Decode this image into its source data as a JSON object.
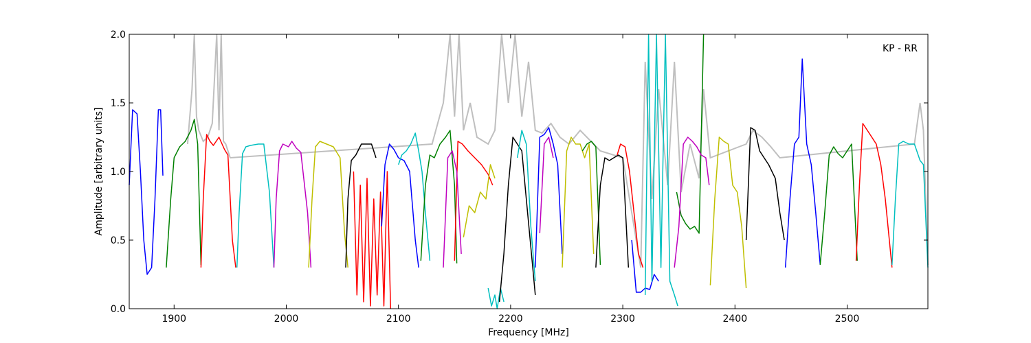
{
  "chart_data": {
    "type": "line",
    "title": "",
    "xlabel": "Frequency [MHz]",
    "ylabel": "Amplitude [arbitrary units]",
    "xlim": [
      1860,
      2572
    ],
    "ylim": [
      0.0,
      2.0
    ],
    "x_ticks": [
      1900,
      2000,
      2100,
      2200,
      2300,
      2400,
      2500
    ],
    "x_tick_labels": [
      "1900",
      "2000",
      "2100",
      "2200",
      "2300",
      "2400",
      "2500"
    ],
    "y_ticks": [
      0.0,
      0.5,
      1.0,
      1.5,
      2.0
    ],
    "y_tick_labels": [
      "0.0",
      "0.5",
      "1.0",
      "1.5",
      "2.0"
    ],
    "grid": false,
    "annotation": "KP - RR",
    "background_color": "#bfbfbf",
    "series": [
      {
        "color": "#0000ff",
        "x": [
          1860,
          1863,
          1867,
          1870,
          1873,
          1876,
          1880,
          1883,
          1886,
          1888,
          1890
        ],
        "y": [
          0.9,
          1.45,
          1.42,
          1.0,
          0.5,
          0.25,
          0.3,
          0.8,
          1.45,
          1.45,
          0.97
        ]
      },
      {
        "color": "#008000",
        "x": [
          1893,
          1897,
          1900,
          1905,
          1910,
          1915,
          1918,
          1921,
          1924
        ],
        "y": [
          0.3,
          0.8,
          1.1,
          1.18,
          1.22,
          1.3,
          1.38,
          1.2,
          0.32
        ]
      },
      {
        "color": "#ff0000",
        "x": [
          1924,
          1926,
          1929,
          1932,
          1935,
          1940,
          1945,
          1948,
          1952,
          1955
        ],
        "y": [
          0.3,
          0.8,
          1.27,
          1.22,
          1.19,
          1.25,
          1.16,
          1.12,
          0.5,
          0.3
        ]
      },
      {
        "color": "#00bfbf",
        "x": [
          1956,
          1958,
          1961,
          1964,
          1968,
          1975,
          1980,
          1985,
          1989
        ],
        "y": [
          0.3,
          0.7,
          1.13,
          1.18,
          1.19,
          1.2,
          1.2,
          0.85,
          0.3
        ]
      },
      {
        "color": "#bf00bf",
        "x": [
          1989,
          1991,
          1994,
          1997,
          2002,
          2005,
          2009,
          2013,
          2019,
          2022
        ],
        "y": [
          0.3,
          0.8,
          1.15,
          1.2,
          1.18,
          1.22,
          1.17,
          1.14,
          0.7,
          0.3
        ]
      },
      {
        "color": "#bfbf00",
        "x": [
          2020,
          2023,
          2026,
          2030,
          2036,
          2042,
          2048,
          2052,
          2055
        ],
        "y": [
          0.3,
          0.8,
          1.18,
          1.22,
          1.2,
          1.18,
          1.1,
          0.55,
          0.3
        ]
      },
      {
        "color": "#000000",
        "x": [
          2053,
          2055,
          2058,
          2062,
          2067,
          2072,
          2076,
          2080
        ],
        "y": [
          0.3,
          0.8,
          1.08,
          1.12,
          1.2,
          1.2,
          1.2,
          1.1
        ]
      },
      {
        "color": "#ff0000",
        "x": [
          2060,
          2063,
          2066,
          2069,
          2072,
          2075,
          2078,
          2081,
          2084,
          2087,
          2090,
          2093
        ],
        "y": [
          1.0,
          0.1,
          0.9,
          0.05,
          0.95,
          0.02,
          0.8,
          0.1,
          0.85,
          0.02,
          1.0,
          0.0
        ]
      },
      {
        "color": "#0000ff",
        "x": [
          2085,
          2088,
          2092,
          2096,
          2100,
          2105,
          2110,
          2115,
          2118
        ],
        "y": [
          0.6,
          1.05,
          1.2,
          1.16,
          1.1,
          1.08,
          1.0,
          0.5,
          0.3
        ]
      },
      {
        "color": "#00bfbf",
        "x": [
          2100,
          2103,
          2107,
          2111,
          2115,
          2118,
          2121,
          2124,
          2128
        ],
        "y": [
          1.05,
          1.12,
          1.15,
          1.2,
          1.28,
          1.15,
          1.0,
          0.7,
          0.35
        ]
      },
      {
        "color": "#008000",
        "x": [
          2120,
          2124,
          2128,
          2132,
          2137,
          2142,
          2146,
          2150,
          2152
        ],
        "y": [
          0.35,
          0.9,
          1.12,
          1.1,
          1.2,
          1.25,
          1.3,
          0.9,
          0.33
        ]
      },
      {
        "color": "#ff0000",
        "x": [
          2150,
          2153,
          2157,
          2162,
          2168,
          2174,
          2180,
          2184
        ],
        "y": [
          0.35,
          1.22,
          1.2,
          1.15,
          1.1,
          1.05,
          0.98,
          0.9
        ]
      },
      {
        "color": "#bf00bf",
        "x": [
          2140,
          2144,
          2148,
          2152,
          2156
        ],
        "y": [
          0.3,
          1.1,
          1.15,
          1.0,
          0.4
        ]
      },
      {
        "color": "#bfbf00",
        "x": [
          2158,
          2163,
          2168,
          2173,
          2178,
          2182,
          2186
        ],
        "y": [
          0.52,
          0.75,
          0.7,
          0.85,
          0.8,
          1.05,
          0.95
        ]
      },
      {
        "color": "#00bfbf",
        "x": [
          2180,
          2183,
          2186,
          2188,
          2191,
          2194
        ],
        "y": [
          0.15,
          0.02,
          0.1,
          0.0,
          0.15,
          0.05
        ]
      },
      {
        "color": "#000000",
        "x": [
          2190,
          2194,
          2198,
          2202,
          2206,
          2210,
          2214,
          2218,
          2222
        ],
        "y": [
          0.05,
          0.4,
          0.9,
          1.25,
          1.2,
          1.15,
          0.8,
          0.45,
          0.1
        ]
      },
      {
        "color": "#00bfbf",
        "x": [
          2206,
          2210,
          2214,
          2218,
          2222
        ],
        "y": [
          1.1,
          1.3,
          1.2,
          0.6,
          0.2
        ]
      },
      {
        "color": "#0000ff",
        "x": [
          2222,
          2226,
          2230,
          2234,
          2238,
          2242,
          2246
        ],
        "y": [
          0.3,
          1.25,
          1.27,
          1.32,
          1.2,
          1.05,
          0.4
        ]
      },
      {
        "color": "#bf00bf",
        "x": [
          2226,
          2230,
          2234,
          2238
        ],
        "y": [
          0.55,
          1.2,
          1.25,
          1.1
        ]
      },
      {
        "color": "#bfbf00",
        "x": [
          2246,
          2250,
          2254,
          2258,
          2262,
          2266,
          2270,
          2274
        ],
        "y": [
          0.3,
          1.15,
          1.25,
          1.2,
          1.2,
          1.1,
          1.2,
          0.4
        ]
      },
      {
        "color": "#008000",
        "x": [
          2264,
          2268,
          2272,
          2276,
          2280
        ],
        "y": [
          1.15,
          1.2,
          1.22,
          1.18,
          0.32
        ]
      },
      {
        "color": "#000000",
        "x": [
          2276,
          2280,
          2284,
          2288,
          2292,
          2296,
          2300,
          2305
        ],
        "y": [
          0.3,
          0.9,
          1.1,
          1.08,
          1.1,
          1.12,
          1.1,
          0.3
        ]
      },
      {
        "color": "#ff0000",
        "x": [
          2295,
          2298,
          2302,
          2306,
          2310,
          2314,
          2318
        ],
        "y": [
          1.12,
          1.2,
          1.18,
          1.0,
          0.7,
          0.4,
          0.3
        ]
      },
      {
        "color": "#0000ff",
        "x": [
          2308,
          2312,
          2316,
          2320,
          2324,
          2328,
          2332
        ],
        "y": [
          0.5,
          0.12,
          0.12,
          0.15,
          0.14,
          0.25,
          0.2
        ]
      },
      {
        "color": "#00bfbf",
        "x": [
          2320,
          2323,
          2326,
          2330,
          2334,
          2338,
          2342,
          2346,
          2349
        ],
        "y": [
          0.1,
          2.0,
          0.2,
          2.0,
          0.3,
          2.0,
          0.2,
          0.1,
          0.02
        ]
      },
      {
        "color": "#008000",
        "x": [
          2348,
          2352,
          2356,
          2360,
          2364,
          2368,
          2372
        ],
        "y": [
          0.85,
          0.68,
          0.62,
          0.58,
          0.6,
          0.55,
          2.0
        ]
      },
      {
        "color": "#bf00bf",
        "x": [
          2346,
          2350,
          2354,
          2358,
          2362,
          2366,
          2370,
          2374,
          2377
        ],
        "y": [
          0.3,
          0.6,
          1.2,
          1.25,
          1.22,
          1.18,
          1.12,
          1.1,
          0.9
        ]
      },
      {
        "color": "#bfbf00",
        "x": [
          2378,
          2382,
          2386,
          2390,
          2394,
          2398,
          2402,
          2406,
          2410
        ],
        "y": [
          0.17,
          0.8,
          1.25,
          1.22,
          1.2,
          0.9,
          0.85,
          0.6,
          0.15
        ]
      },
      {
        "color": "#000000",
        "x": [
          2410,
          2414,
          2418,
          2422,
          2426,
          2430,
          2436,
          2440,
          2444
        ],
        "y": [
          0.5,
          1.32,
          1.3,
          1.15,
          1.1,
          1.05,
          0.95,
          0.7,
          0.5
        ]
      },
      {
        "color": "#0000ff",
        "x": [
          2445,
          2449,
          2453,
          2457,
          2460,
          2464,
          2468,
          2472,
          2476
        ],
        "y": [
          0.3,
          0.8,
          1.2,
          1.25,
          1.82,
          1.2,
          1.05,
          0.7,
          0.32
        ]
      },
      {
        "color": "#008000",
        "x": [
          2476,
          2480,
          2484,
          2488,
          2492,
          2496,
          2500,
          2504,
          2509
        ],
        "y": [
          0.32,
          0.7,
          1.12,
          1.18,
          1.13,
          1.1,
          1.15,
          1.2,
          0.35
        ]
      },
      {
        "color": "#ff0000",
        "x": [
          2508,
          2511,
          2514,
          2518,
          2522,
          2526,
          2530,
          2534,
          2540
        ],
        "y": [
          0.35,
          0.9,
          1.35,
          1.3,
          1.25,
          1.2,
          1.05,
          0.8,
          0.3
        ]
      },
      {
        "color": "#00bfbf",
        "x": [
          2540,
          2543,
          2546,
          2550,
          2555,
          2560,
          2565,
          2568,
          2572
        ],
        "y": [
          0.32,
          0.8,
          1.2,
          1.22,
          1.2,
          1.2,
          1.08,
          1.05,
          0.3
        ]
      }
    ],
    "gray_trace": {
      "color": "#bfbf00",
      "x": [
        1912,
        1916,
        1918,
        1920,
        1922,
        1926,
        1930,
        1934,
        1938,
        1940,
        1942,
        1944,
        1946,
        1950,
        2130,
        2140,
        2146,
        2150,
        2154,
        2158,
        2164,
        2170,
        2180,
        2186,
        2192,
        2198,
        2204,
        2210,
        2216,
        2222,
        2228,
        2236,
        2244,
        2252,
        2262,
        2280,
        2300,
        2316,
        2320,
        2326,
        2332,
        2340,
        2346,
        2352,
        2360,
        2368,
        2372,
        2378,
        2410,
        2416,
        2424,
        2432,
        2440,
        2560,
        2565,
        2568,
        2572
      ],
      "y": [
        1.2,
        1.6,
        2.0,
        1.4,
        1.3,
        1.22,
        1.25,
        1.35,
        2.0,
        1.3,
        2.0,
        1.22,
        1.2,
        1.1,
        1.2,
        1.5,
        2.0,
        1.4,
        2.0,
        1.3,
        1.5,
        1.25,
        1.2,
        1.3,
        2.0,
        1.5,
        2.0,
        1.4,
        1.8,
        1.3,
        1.28,
        1.35,
        1.25,
        1.2,
        1.3,
        1.15,
        1.1,
        0.3,
        1.8,
        0.8,
        1.6,
        0.9,
        1.8,
        0.85,
        1.2,
        0.95,
        1.6,
        1.1,
        1.2,
        1.3,
        1.25,
        1.18,
        1.1,
        1.2,
        1.5,
        1.3,
        0.32
      ]
    }
  }
}
